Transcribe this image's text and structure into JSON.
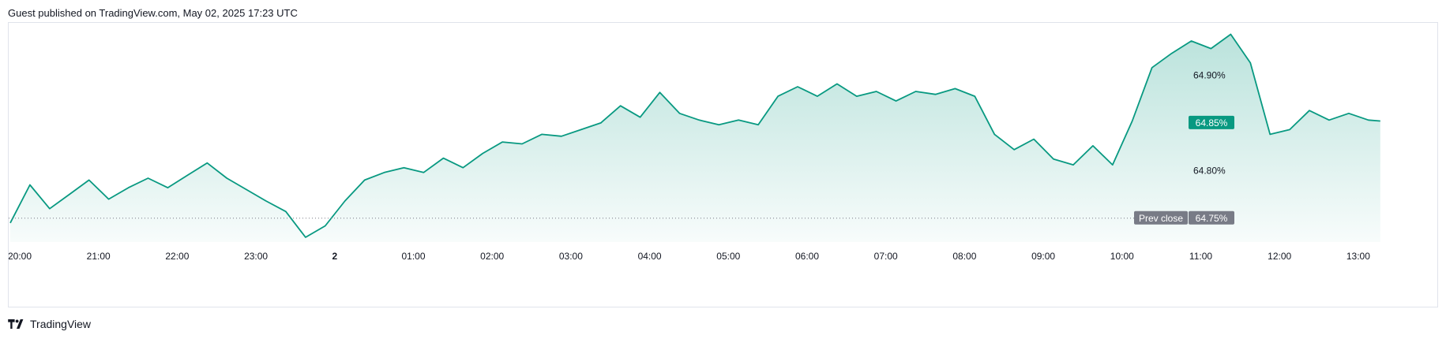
{
  "header": {
    "published": "Guest published on TradingView.com, May 02, 2025 17:23 UTC"
  },
  "footer": {
    "brand": "TradingView",
    "logo_icon": "tradingview-logo-icon"
  },
  "colors": {
    "line": "#089981",
    "fill_top": "#089981",
    "badge_last": "#089981",
    "badge_prev": "#787b86",
    "text": "#131722",
    "border": "#e0e3eb"
  },
  "chart_data": {
    "type": "area",
    "x_ticks": [
      "20:00",
      "21:00",
      "22:00",
      "23:00",
      "2",
      "01:00",
      "02:00",
      "03:00",
      "04:00",
      "05:00",
      "06:00",
      "07:00",
      "08:00",
      "09:00",
      "10:00",
      "11:00",
      "12:00",
      "13:00"
    ],
    "x_ticks_bold": [
      "2"
    ],
    "y_ticks": [
      "64.90%",
      "64.80%"
    ],
    "y_tick_values": [
      64.9,
      64.8
    ],
    "ylim": [
      64.725,
      64.955
    ],
    "last_value": 64.85,
    "last_label": "64.85%",
    "prev_close": 64.75,
    "prev_close_label": "Prev close",
    "prev_close_value_label": "64.75%",
    "x_hours": [
      0.0,
      0.25,
      0.5,
      0.75,
      1.0,
      1.25,
      1.5,
      1.75,
      2.0,
      2.25,
      2.5,
      2.75,
      3.0,
      3.25,
      3.5,
      3.75,
      4.0,
      4.25,
      4.5,
      4.75,
      5.0,
      5.25,
      5.5,
      5.75,
      6.0,
      6.25,
      6.5,
      6.75,
      7.0,
      7.25,
      7.5,
      7.75,
      8.0,
      8.25,
      8.5,
      8.75,
      9.0,
      9.25,
      9.5,
      9.75,
      10.0,
      10.25,
      10.5,
      10.75,
      11.0,
      11.25,
      11.5,
      11.75,
      12.0,
      12.25,
      12.5,
      12.75,
      13.0,
      13.25,
      13.5,
      13.75,
      14.0,
      14.25,
      14.5,
      14.75,
      15.0,
      15.25,
      15.5,
      15.75,
      16.0,
      16.25,
      16.5,
      16.75,
      17.0,
      17.25,
      17.4
    ],
    "values": [
      64.745,
      64.785,
      64.76,
      64.775,
      64.79,
      64.77,
      64.782,
      64.792,
      64.782,
      64.795,
      64.808,
      64.792,
      64.78,
      64.768,
      64.757,
      64.73,
      64.742,
      64.768,
      64.79,
      64.798,
      64.803,
      64.798,
      64.813,
      64.803,
      64.818,
      64.83,
      64.828,
      64.838,
      64.836,
      64.843,
      64.85,
      64.868,
      64.856,
      64.882,
      64.86,
      64.853,
      64.848,
      64.853,
      64.848,
      64.878,
      64.888,
      64.878,
      64.891,
      64.878,
      64.883,
      64.873,
      64.883,
      64.88,
      64.886,
      64.878,
      64.838,
      64.822,
      64.833,
      64.812,
      64.806,
      64.826,
      64.806,
      64.852,
      64.908,
      64.923,
      64.936,
      64.928,
      64.943,
      64.913,
      64.838,
      64.843,
      64.863,
      64.853,
      64.86,
      64.853,
      64.852
    ]
  }
}
